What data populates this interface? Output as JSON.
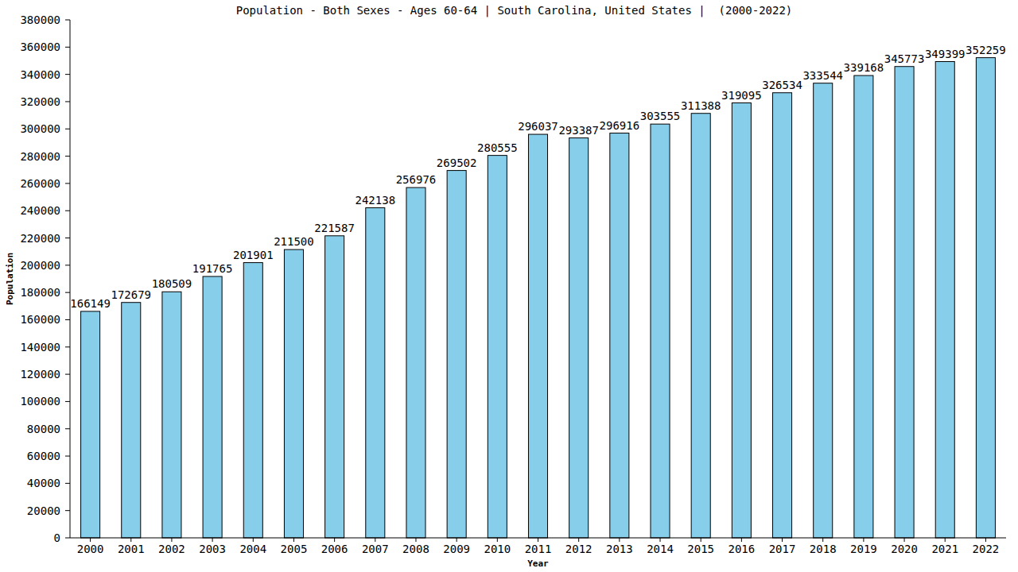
{
  "chart_data": {
    "type": "bar",
    "title": "Population - Both Sexes - Ages 60-64 | South Carolina, United States |  (2000-2022)",
    "x_label": "Year",
    "y_label": "Population",
    "categories": [
      "2000",
      "2001",
      "2002",
      "2003",
      "2004",
      "2005",
      "2006",
      "2007",
      "2008",
      "2009",
      "2010",
      "2011",
      "2012",
      "2013",
      "2014",
      "2015",
      "2016",
      "2017",
      "2018",
      "2019",
      "2020",
      "2021",
      "2022"
    ],
    "values": [
      166149,
      172679,
      180509,
      191765,
      201901,
      211500,
      221587,
      242138,
      256976,
      269502,
      280555,
      296037,
      293387,
      296916,
      303555,
      311388,
      319095,
      326534,
      333544,
      339168,
      345773,
      349399,
      352259
    ],
    "color": "#87ceeb",
    "ylim": [
      0,
      380000
    ],
    "yticks": [
      0,
      20000,
      40000,
      60000,
      80000,
      100000,
      120000,
      140000,
      160000,
      180000,
      200000,
      220000,
      240000,
      260000,
      280000,
      300000,
      320000,
      340000,
      360000,
      380000
    ],
    "grid": false,
    "data_labels": true
  }
}
